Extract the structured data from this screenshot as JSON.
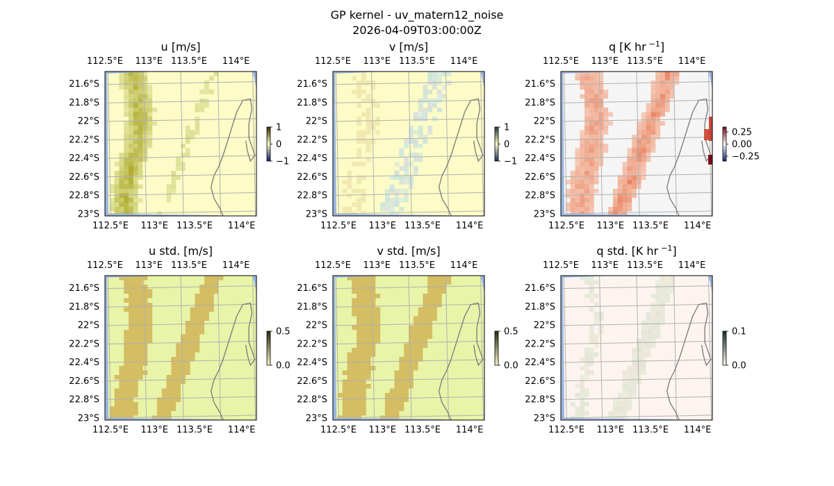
{
  "figure": {
    "title_line1": "GP kernel - uv_matern12_noise",
    "title_line2": "2026-04-09T03:00:00Z"
  },
  "colors": {
    "ocean": "#97b6e1",
    "grid": "#b0b0b0",
    "coast": "#808080",
    "yellow_base": "#fdfbc6",
    "std_base": "#e8f4a8",
    "std_patch": "#d4bd62"
  },
  "chart_data": [
    {
      "type": "heatmap",
      "title": "u [m/s]",
      "lon_ticks": [
        "112.5°E",
        "113°E",
        "113.5°E",
        "114°E"
      ],
      "lat_ticks": [
        "21.6°S",
        "21.8°S",
        "22°S",
        "22.2°S",
        "22.4°S",
        "22.6°S",
        "22.8°S",
        "23°S"
      ],
      "lon_range": [
        112.5,
        114.2
      ],
      "lat_range": [
        -23.0,
        -21.5
      ],
      "colorbar": {
        "ticks": [
          "1",
          "0",
          "−1"
        ],
        "values": [
          1,
          0,
          -1
        ],
        "range": [
          -1,
          1
        ]
      }
    },
    {
      "type": "heatmap",
      "title": "v [m/s]",
      "lon_ticks": [
        "112.5°E",
        "113°E",
        "113.5°E",
        "114°E"
      ],
      "lat_ticks": [
        "21.6°S",
        "21.8°S",
        "22°S",
        "22.2°S",
        "22.4°S",
        "22.6°S",
        "22.8°S",
        "23°S"
      ],
      "lon_range": [
        112.5,
        114.2
      ],
      "lat_range": [
        -23.0,
        -21.5
      ],
      "colorbar": {
        "ticks": [
          "1",
          "0",
          "−1"
        ],
        "values": [
          1,
          0,
          -1
        ],
        "range": [
          -1,
          1
        ]
      }
    },
    {
      "type": "heatmap",
      "title": "q [K hr",
      "title_sup": "−1",
      "title_end": "]",
      "lon_ticks": [
        "112.5°E",
        "113°E",
        "113.5°E",
        "114°E"
      ],
      "lat_ticks": [
        "21.6°S",
        "21.8°S",
        "22°S",
        "22.2°S",
        "22.4°S",
        "22.6°S",
        "22.8°S",
        "23°S"
      ],
      "lon_range": [
        112.5,
        114.2
      ],
      "lat_range": [
        -23.0,
        -21.5
      ],
      "colorbar": {
        "ticks": [
          "0.25",
          "0.00",
          "−0.25"
        ],
        "values": [
          0.25,
          0,
          -0.25
        ],
        "range": [
          -0.35,
          0.35
        ]
      }
    },
    {
      "type": "heatmap",
      "title": "u std. [m/s]",
      "lon_ticks": [
        "112.5°E",
        "113°E",
        "113.5°E",
        "114°E"
      ],
      "lat_ticks": [
        "21.6°S",
        "21.8°S",
        "22°S",
        "22.2°S",
        "22.4°S",
        "22.6°S",
        "22.8°S",
        "23°S"
      ],
      "lon_range": [
        112.5,
        114.2
      ],
      "lat_range": [
        -23.0,
        -21.5
      ],
      "colorbar": {
        "ticks": [
          "0.5",
          "0.0"
        ],
        "values": [
          0.5,
          0
        ],
        "range": [
          0,
          0.5
        ]
      }
    },
    {
      "type": "heatmap",
      "title": "v std. [m/s]",
      "lon_ticks": [
        "112.5°E",
        "113°E",
        "113.5°E",
        "114°E"
      ],
      "lat_ticks": [
        "21.6°S",
        "21.8°S",
        "22°S",
        "22.2°S",
        "22.4°S",
        "22.6°S",
        "22.8°S",
        "23°S"
      ],
      "lon_range": [
        112.5,
        114.2
      ],
      "lat_range": [
        -23.0,
        -21.5
      ],
      "colorbar": {
        "ticks": [
          "0.5",
          "0.0"
        ],
        "values": [
          0.5,
          0
        ],
        "range": [
          0,
          0.5
        ]
      }
    },
    {
      "type": "heatmap",
      "title": "q std. [K hr",
      "title_sup": "−1",
      "title_end": "]",
      "lon_ticks": [
        "112.5°E",
        "113°E",
        "113.5°E",
        "114°E"
      ],
      "lat_ticks": [
        "21.6°S",
        "21.8°S",
        "22°S",
        "22.2°S",
        "22.4°S",
        "22.6°S",
        "22.8°S",
        "23°S"
      ],
      "lon_range": [
        112.5,
        114.2
      ],
      "lat_range": [
        -23.0,
        -21.5
      ],
      "colorbar": {
        "ticks": [
          "0.1",
          "0.0"
        ],
        "values": [
          0.1,
          0
        ],
        "range": [
          0,
          0.1
        ]
      }
    }
  ]
}
